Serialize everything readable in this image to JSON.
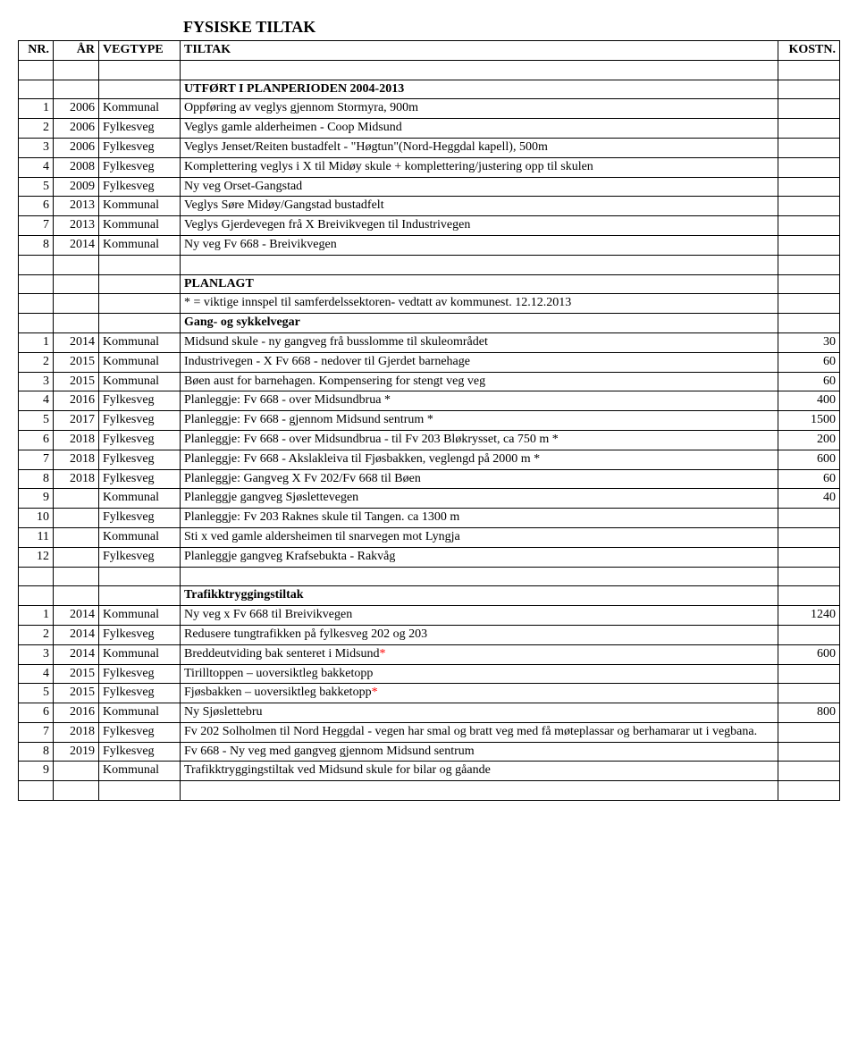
{
  "title": "FYSISKE TILTAK",
  "headers": {
    "nr": "NR.",
    "ar": "ÅR",
    "vegtype": "VEGTYPE",
    "tiltak": "TILTAK",
    "kostn": "KOSTN."
  },
  "section1_heading": "UTFØRT I PLANPERIODEN 2004-2013",
  "section1_rows": [
    {
      "nr": "1",
      "ar": "2006",
      "veg": "Kommunal",
      "tiltak": "Oppføring av veglys gjennom Stormyra, 900m",
      "kostn": ""
    },
    {
      "nr": "2",
      "ar": "2006",
      "veg": "Fylkesveg",
      "tiltak": "Veglys gamle alderheimen - Coop Midsund",
      "kostn": ""
    },
    {
      "nr": "3",
      "ar": "2006",
      "veg": "Fylkesveg",
      "tiltak": "Veglys Jenset/Reiten bustadfelt - \"Høgtun\"(Nord-Heggdal kapell), 500m",
      "kostn": ""
    },
    {
      "nr": "4",
      "ar": "2008",
      "veg": "Fylkesveg",
      "tiltak": "Komplettering veglys i X til Midøy skule + komplettering/justering opp til skulen",
      "kostn": ""
    },
    {
      "nr": "5",
      "ar": "2009",
      "veg": "Fylkesveg",
      "tiltak": "Ny veg Orset-Gangstad",
      "kostn": ""
    },
    {
      "nr": "6",
      "ar": "2013",
      "veg": "Kommunal",
      "tiltak": "Veglys Søre Midøy/Gangstad bustadfelt",
      "kostn": ""
    },
    {
      "nr": "7",
      "ar": "2013",
      "veg": "Kommunal",
      "tiltak": "Veglys Gjerdevegen frå X Breivikvegen til Industrivegen",
      "kostn": ""
    },
    {
      "nr": "8",
      "ar": "2014",
      "veg": "Kommunal",
      "tiltak": "Ny veg Fv 668 - Breivikvegen",
      "kostn": ""
    }
  ],
  "planlagt_heading": "PLANLAGT",
  "planlagt_note": "* = viktige innspel til samferdelssektoren-  vedtatt av kommunest. 12.12.2013",
  "gang_heading": "Gang- og sykkelvegar",
  "gang_rows": [
    {
      "nr": "1",
      "ar": "2014",
      "veg": "Kommunal",
      "tiltak": "Midsund skule - ny gangveg frå busslomme til skuleområdet",
      "kostn": "30"
    },
    {
      "nr": "2",
      "ar": "2015",
      "veg": "Kommunal",
      "tiltak": "Industrivegen - X Fv 668 - nedover til Gjerdet barnehage",
      "kostn": "60"
    },
    {
      "nr": "3",
      "ar": "2015",
      "veg": "Kommunal",
      "tiltak": "Bøen aust for barnehagen. Kompensering for stengt veg veg",
      "kostn": "60"
    },
    {
      "nr": "4",
      "ar": "2016",
      "veg": "Fylkesveg",
      "tiltak": "Planleggje:  Fv 668 - over Midsundbrua *",
      "kostn": "400"
    },
    {
      "nr": "5",
      "ar": "2017",
      "veg": "Fylkesveg",
      "tiltak": "Planleggje:   Fv 668 - gjennom Midsund sentrum *",
      "kostn": "1500"
    },
    {
      "nr": "6",
      "ar": "2018",
      "veg": "Fylkesveg",
      "tiltak": "Planleggje:  Fv 668 - over Midsundbrua - til Fv 203 Bløkrysset, ca 750 m *",
      "kostn": "200"
    },
    {
      "nr": "7",
      "ar": "2018",
      "veg": "Fylkesveg",
      "tiltak": "Planleggje:  Fv 668 - Akslakleiva til Fjøsbakken, veglengd på 2000 m *",
      "kostn": "600"
    },
    {
      "nr": "8",
      "ar": "2018",
      "veg": "Fylkesveg",
      "tiltak": "Planleggje: Gangveg X Fv 202/Fv 668 til Bøen",
      "kostn": "60"
    },
    {
      "nr": "9",
      "ar": "",
      "veg": "Kommunal",
      "tiltak": "Planleggje gangveg Sjøslettevegen",
      "kostn": "40"
    },
    {
      "nr": "10",
      "ar": "",
      "veg": "Fylkesveg",
      "tiltak": "Planleggje:  Fv 203 Raknes skule til Tangen. ca 1300 m",
      "kostn": ""
    },
    {
      "nr": "11",
      "ar": "",
      "veg": "Kommunal",
      "tiltak": "Sti x ved gamle aldersheimen til snarvegen mot Lyngja",
      "kostn": ""
    },
    {
      "nr": "12",
      "ar": "",
      "veg": "Fylkesveg",
      "tiltak": "Planleggje gangveg Krafsebukta - Rakvåg",
      "kostn": ""
    }
  ],
  "trafikk_heading": "Trafikktryggingstiltak",
  "trafikk_rows": [
    {
      "nr": "1",
      "ar": "2014",
      "veg": "Kommunal",
      "tiltak": "Ny veg x Fv 668 til Breivikvegen",
      "kostn": "1240"
    },
    {
      "nr": "2",
      "ar": "2014",
      "veg": "Fylkesveg",
      "tiltak": "Redusere tungtrafikken på fylkesveg 202 og 203",
      "kostn": ""
    },
    {
      "nr": "3",
      "ar": "2014",
      "veg": "Kommunal",
      "tiltak": "Breddeutviding bak senteret i Midsund<span style=\"color:#ff0000\">*</span>",
      "kostn": "600"
    },
    {
      "nr": "4",
      "ar": "2015",
      "veg": "Fylkesveg",
      "tiltak": "Tirilltoppen – uoversiktleg bakketopp",
      "kostn": ""
    },
    {
      "nr": "5",
      "ar": "2015",
      "veg": "Fylkesveg",
      "tiltak": "Fjøsbakken – uoversiktleg bakketopp<span style=\"color:#ff0000\">*</span>",
      "kostn": ""
    },
    {
      "nr": "6",
      "ar": "2016",
      "veg": "Kommunal",
      "tiltak": "Ny Sjøslettebru",
      "kostn": "800"
    },
    {
      "nr": "7",
      "ar": "2018",
      "veg": "Fylkesveg",
      "tiltak": "Fv 202 Solholmen til Nord Heggdal - vegen har smal og bratt veg med få møteplassar og berhamarar ut i vegbana.",
      "kostn": ""
    },
    {
      "nr": "8",
      "ar": "2019",
      "veg": "Fylkesveg",
      "tiltak": "Fv 668 - Ny veg med gangveg  gjennom Midsund sentrum",
      "kostn": ""
    },
    {
      "nr": "9",
      "ar": "",
      "veg": "Kommunal",
      "tiltak": "Trafikktryggingstiltak ved Midsund skule for bilar og gåande",
      "kostn": ""
    }
  ]
}
